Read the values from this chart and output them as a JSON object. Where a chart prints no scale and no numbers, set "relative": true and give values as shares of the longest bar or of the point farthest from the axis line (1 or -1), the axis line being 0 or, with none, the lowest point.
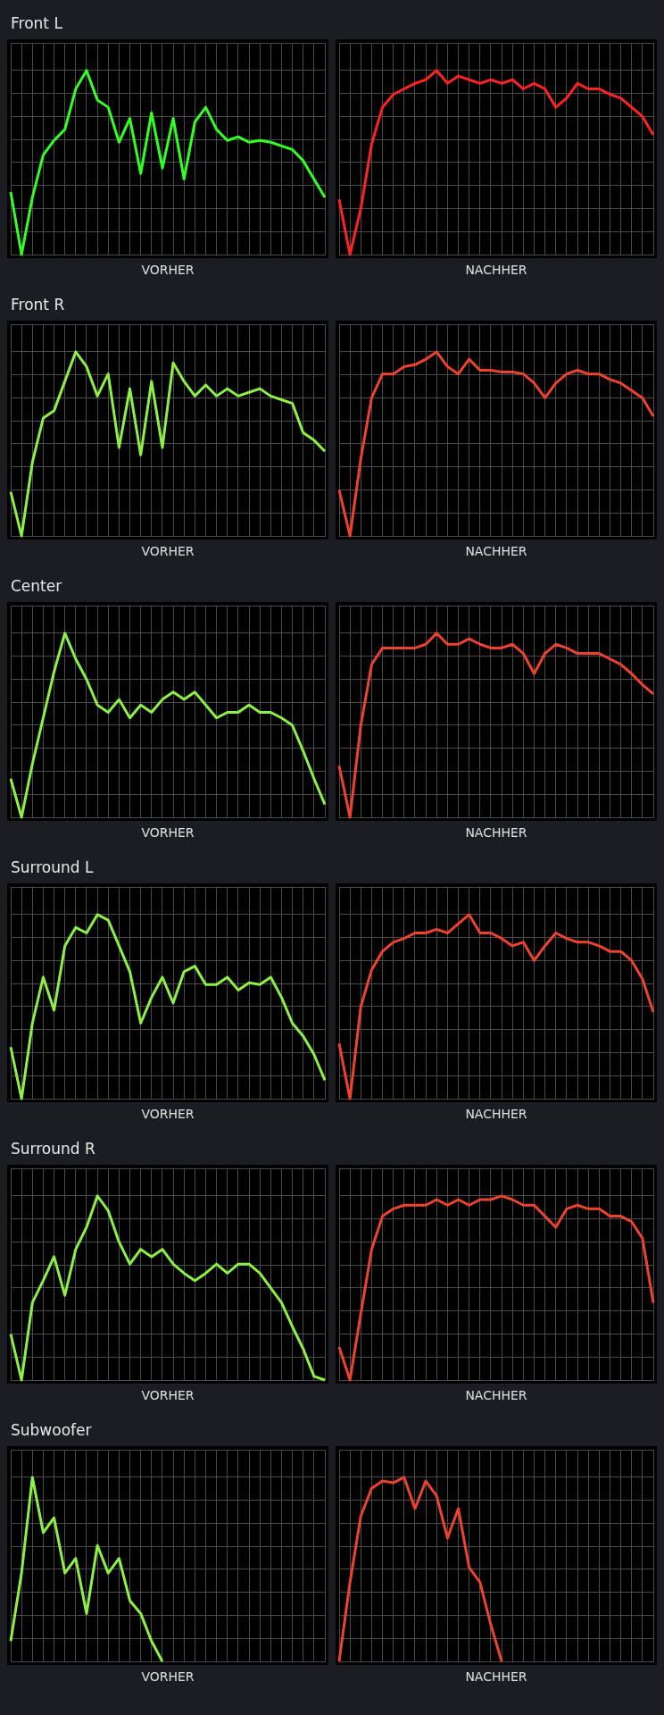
{
  "chart_data": [
    {
      "type": "line",
      "title": "Front L",
      "xlabel": "VORHER",
      "relative": true,
      "grid": true,
      "tick_labels": false,
      "marker": "none",
      "categories": [
        null,
        null,
        null,
        null,
        null,
        null,
        null,
        null,
        null,
        null,
        null,
        null,
        null,
        null,
        null,
        null,
        null,
        null,
        null,
        null,
        null,
        null,
        null,
        null,
        null,
        null,
        null,
        null,
        null,
        null
      ],
      "series": [
        {
          "color": "#33ff22",
          "values": [
            0.34,
            0,
            0.31,
            0.54,
            0.62,
            0.68,
            0.9,
            1,
            0.84,
            0.8,
            0.61,
            0.74,
            0.44,
            0.77,
            0.47,
            0.74,
            0.41,
            0.72,
            0.8,
            0.68,
            0.62,
            0.64,
            0.61,
            0.62,
            0.61,
            0.59,
            0.57,
            0.51,
            0.41,
            0.31
          ]
        }
      ]
    },
    {
      "type": "line",
      "xlabel": "NACHHER",
      "relative": true,
      "grid": true,
      "tick_labels": false,
      "marker": "none",
      "categories": [
        null,
        null,
        null,
        null,
        null,
        null,
        null,
        null,
        null,
        null,
        null,
        null,
        null,
        null,
        null,
        null,
        null,
        null,
        null,
        null,
        null,
        null,
        null,
        null,
        null,
        null,
        null,
        null,
        null,
        null
      ],
      "series": [
        {
          "color": "#ff2222",
          "values": [
            0.3,
            0,
            0.25,
            0.6,
            0.8,
            0.87,
            0.9,
            0.93,
            0.95,
            1,
            0.93,
            0.97,
            0.95,
            0.93,
            0.95,
            0.93,
            0.95,
            0.9,
            0.93,
            0.9,
            0.8,
            0.85,
            0.93,
            0.9,
            0.9,
            0.87,
            0.85,
            0.8,
            0.75,
            0.65
          ]
        }
      ]
    },
    {
      "type": "line",
      "title": "Front R",
      "xlabel": "VORHER",
      "relative": true,
      "grid": true,
      "tick_labels": false,
      "marker": "none",
      "categories": [
        null,
        null,
        null,
        null,
        null,
        null,
        null,
        null,
        null,
        null,
        null,
        null,
        null,
        null,
        null,
        null,
        null,
        null,
        null,
        null,
        null,
        null,
        null,
        null,
        null,
        null,
        null,
        null,
        null,
        null
      ],
      "series": [
        {
          "color": "#8cf046",
          "values": [
            0.24,
            0,
            0.4,
            0.64,
            0.68,
            0.84,
            1,
            0.92,
            0.76,
            0.88,
            0.48,
            0.8,
            0.44,
            0.84,
            0.48,
            0.94,
            0.84,
            0.76,
            0.82,
            0.76,
            0.8,
            0.76,
            0.78,
            0.8,
            0.76,
            0.74,
            0.72,
            0.56,
            0.52,
            0.46
          ]
        }
      ]
    },
    {
      "type": "line",
      "xlabel": "NACHHER",
      "relative": true,
      "grid": true,
      "tick_labels": false,
      "marker": "none",
      "categories": [
        null,
        null,
        null,
        null,
        null,
        null,
        null,
        null,
        null,
        null,
        null,
        null,
        null,
        null,
        null,
        null,
        null,
        null,
        null,
        null,
        null,
        null,
        null,
        null,
        null,
        null,
        null,
        null,
        null,
        null
      ],
      "series": [
        {
          "color": "#ec432e",
          "values": [
            0.25,
            0,
            0.42,
            0.75,
            0.88,
            0.88,
            0.92,
            0.93,
            0.96,
            1,
            0.92,
            0.88,
            0.96,
            0.9,
            0.9,
            0.89,
            0.89,
            0.88,
            0.83,
            0.75,
            0.83,
            0.88,
            0.9,
            0.88,
            0.88,
            0.85,
            0.83,
            0.79,
            0.75,
            0.65
          ]
        }
      ]
    },
    {
      "type": "line",
      "title": "Center",
      "xlabel": "VORHER",
      "relative": true,
      "grid": true,
      "tick_labels": false,
      "marker": "none",
      "categories": [
        null,
        null,
        null,
        null,
        null,
        null,
        null,
        null,
        null,
        null,
        null,
        null,
        null,
        null,
        null,
        null,
        null,
        null,
        null,
        null,
        null,
        null,
        null,
        null,
        null,
        null,
        null,
        null,
        null,
        null
      ],
      "series": [
        {
          "color": "#8cf046",
          "values": [
            0.21,
            0,
            0.29,
            0.54,
            0.79,
            1,
            0.86,
            0.75,
            0.61,
            0.57,
            0.64,
            0.54,
            0.61,
            0.57,
            0.64,
            0.68,
            0.64,
            0.68,
            0.61,
            0.54,
            0.57,
            0.57,
            0.61,
            0.57,
            0.57,
            0.54,
            0.5,
            0.36,
            0.21,
            0.07
          ]
        }
      ]
    },
    {
      "type": "line",
      "xlabel": "NACHHER",
      "relative": true,
      "grid": true,
      "tick_labels": false,
      "marker": "none",
      "categories": [
        null,
        null,
        null,
        null,
        null,
        null,
        null,
        null,
        null,
        null,
        null,
        null,
        null,
        null,
        null,
        null,
        null,
        null,
        null,
        null,
        null,
        null,
        null,
        null,
        null,
        null,
        null,
        null,
        null,
        null
      ],
      "series": [
        {
          "color": "#ec432e",
          "values": [
            0.28,
            0,
            0.5,
            0.83,
            0.92,
            0.92,
            0.92,
            0.92,
            0.94,
            1,
            0.94,
            0.94,
            0.97,
            0.94,
            0.92,
            0.92,
            0.94,
            0.89,
            0.78,
            0.89,
            0.94,
            0.92,
            0.89,
            0.89,
            0.89,
            0.86,
            0.83,
            0.78,
            0.72,
            0.67
          ]
        }
      ]
    },
    {
      "type": "line",
      "title": "Surround L",
      "xlabel": "VORHER",
      "relative": true,
      "grid": true,
      "tick_labels": false,
      "marker": "none",
      "categories": [
        null,
        null,
        null,
        null,
        null,
        null,
        null,
        null,
        null,
        null,
        null,
        null,
        null,
        null,
        null,
        null,
        null,
        null,
        null,
        null,
        null,
        null,
        null,
        null,
        null,
        null,
        null,
        null,
        null,
        null
      ],
      "series": [
        {
          "color": "#8cf046",
          "values": [
            0.28,
            0,
            0.41,
            0.66,
            0.48,
            0.83,
            0.93,
            0.9,
            1,
            0.97,
            0.83,
            0.69,
            0.41,
            0.55,
            0.66,
            0.52,
            0.69,
            0.72,
            0.62,
            0.62,
            0.66,
            0.59,
            0.63,
            0.62,
            0.66,
            0.55,
            0.41,
            0.34,
            0.24,
            0.1
          ]
        }
      ]
    },
    {
      "type": "line",
      "xlabel": "NACHHER",
      "relative": true,
      "grid": true,
      "tick_labels": false,
      "marker": "none",
      "categories": [
        null,
        null,
        null,
        null,
        null,
        null,
        null,
        null,
        null,
        null,
        null,
        null,
        null,
        null,
        null,
        null,
        null,
        null,
        null,
        null,
        null,
        null,
        null,
        null,
        null,
        null,
        null,
        null,
        null,
        null
      ],
      "series": [
        {
          "color": "#ec432e",
          "values": [
            0.3,
            0,
            0.5,
            0.7,
            0.8,
            0.85,
            0.87,
            0.9,
            0.9,
            0.92,
            0.9,
            0.95,
            1,
            0.9,
            0.9,
            0.87,
            0.83,
            0.85,
            0.75,
            0.83,
            0.9,
            0.87,
            0.85,
            0.85,
            0.83,
            0.8,
            0.8,
            0.75,
            0.65,
            0.47
          ]
        }
      ]
    },
    {
      "type": "line",
      "title": "Surround R",
      "xlabel": "VORHER",
      "relative": true,
      "grid": true,
      "tick_labels": false,
      "marker": "none",
      "categories": [
        null,
        null,
        null,
        null,
        null,
        null,
        null,
        null,
        null,
        null,
        null,
        null,
        null,
        null,
        null,
        null,
        null,
        null,
        null,
        null,
        null,
        null,
        null,
        null,
        null,
        null,
        null,
        null,
        null,
        null
      ],
      "series": [
        {
          "color": "#8cf046",
          "values": [
            0.25,
            0,
            0.42,
            0.54,
            0.67,
            0.46,
            0.71,
            0.83,
            1,
            0.92,
            0.75,
            0.63,
            0.71,
            0.67,
            0.71,
            0.63,
            0.58,
            0.54,
            0.58,
            0.63,
            0.58,
            0.63,
            0.63,
            0.58,
            0.5,
            0.42,
            0.29,
            0.17,
            0.02,
            0
          ]
        }
      ]
    },
    {
      "type": "line",
      "xlabel": "NACHHER",
      "relative": true,
      "grid": true,
      "tick_labels": false,
      "marker": "none",
      "categories": [
        null,
        null,
        null,
        null,
        null,
        null,
        null,
        null,
        null,
        null,
        null,
        null,
        null,
        null,
        null,
        null,
        null,
        null,
        null,
        null,
        null,
        null,
        null,
        null,
        null,
        null,
        null,
        null,
        null,
        null
      ],
      "series": [
        {
          "color": "#ec432e",
          "values": [
            0.18,
            0,
            0.36,
            0.71,
            0.89,
            0.93,
            0.95,
            0.95,
            0.95,
            0.98,
            0.95,
            0.98,
            0.95,
            0.98,
            0.98,
            1,
            0.98,
            0.95,
            0.95,
            0.89,
            0.83,
            0.93,
            0.95,
            0.93,
            0.93,
            0.89,
            0.89,
            0.86,
            0.77,
            0.42
          ]
        }
      ]
    },
    {
      "type": "line",
      "title": "Subwoofer",
      "xlabel": "VORHER",
      "relative": true,
      "grid": true,
      "tick_labels": false,
      "marker": "none",
      "categories": [
        null,
        null,
        null,
        null,
        null,
        null,
        null,
        null,
        null,
        null,
        null,
        null,
        null,
        null,
        null,
        null,
        null,
        null,
        null,
        null,
        null,
        null,
        null,
        null,
        null,
        null,
        null,
        null,
        null,
        null
      ],
      "series": [
        {
          "color": "#8cf046",
          "values": [
            0.11,
            0.48,
            1,
            0.7,
            0.78,
            0.48,
            0.56,
            0.26,
            0.63,
            0.48,
            0.56,
            0.33,
            0.26,
            0.11,
            0,
            null,
            null,
            null,
            null,
            null,
            null,
            null,
            null,
            null,
            null,
            null,
            null,
            null,
            null,
            null
          ]
        }
      ]
    },
    {
      "type": "line",
      "xlabel": "NACHHER",
      "relative": true,
      "grid": true,
      "tick_labels": false,
      "marker": "none",
      "categories": [
        null,
        null,
        null,
        null,
        null,
        null,
        null,
        null,
        null,
        null,
        null,
        null,
        null,
        null,
        null,
        null,
        null,
        null,
        null,
        null,
        null,
        null,
        null,
        null,
        null,
        null,
        null,
        null,
        null,
        null
      ],
      "series": [
        {
          "color": "#ec432e",
          "values": [
            0,
            0.43,
            0.79,
            0.94,
            0.98,
            0.97,
            1,
            0.83,
            0.98,
            0.9,
            0.67,
            0.83,
            0.51,
            0.43,
            0.2,
            0,
            null,
            null,
            null,
            null,
            null,
            null,
            null,
            null,
            null,
            null,
            null,
            null,
            null,
            null
          ]
        }
      ]
    }
  ]
}
